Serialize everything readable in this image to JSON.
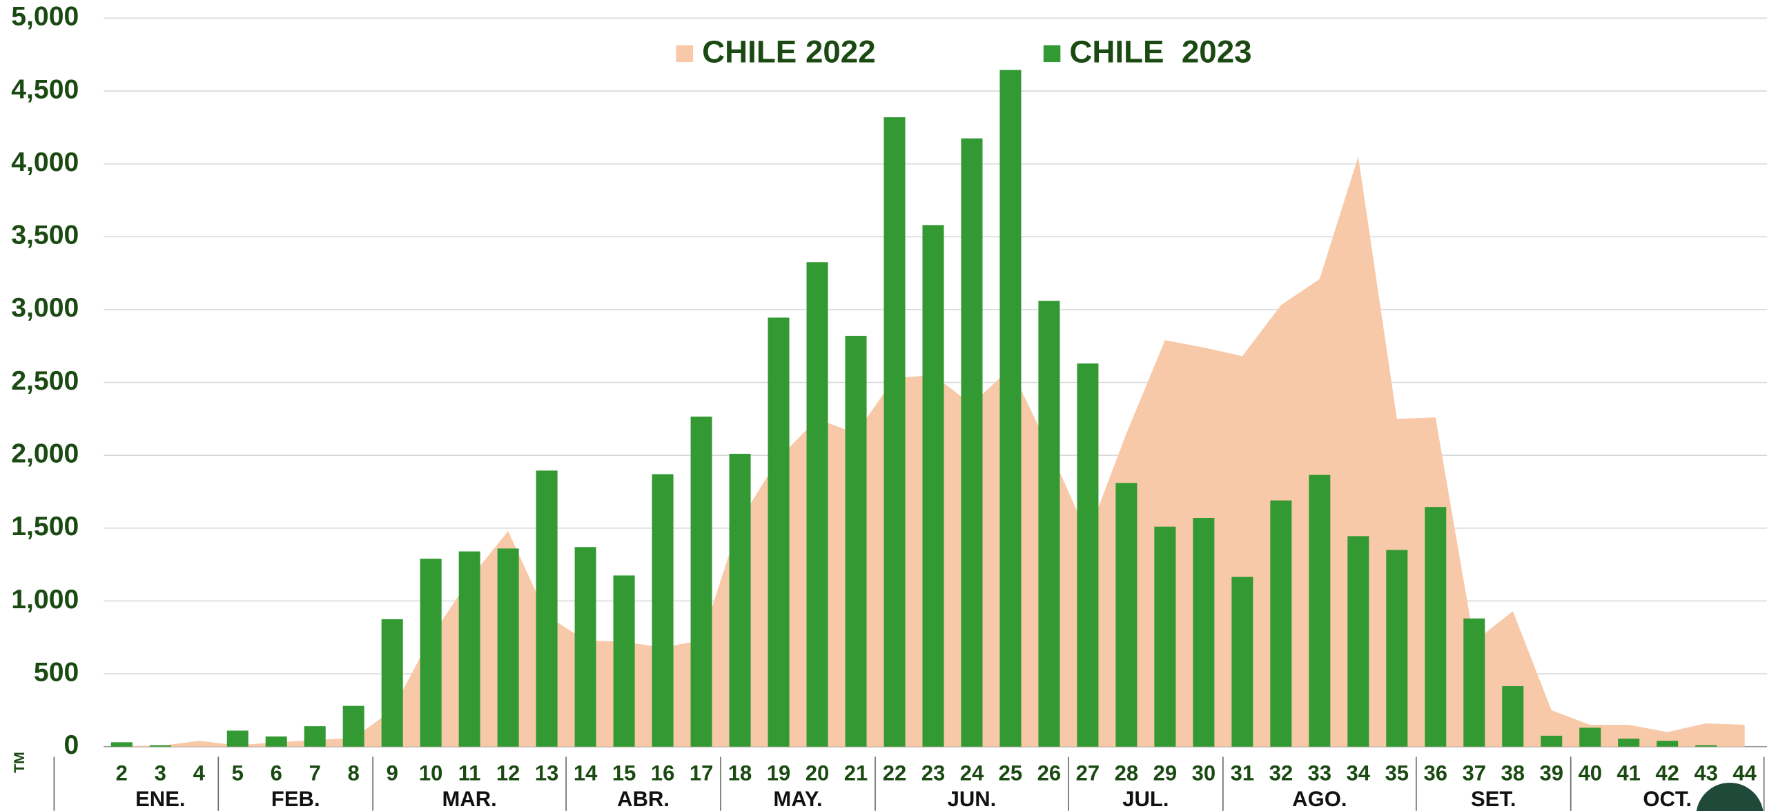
{
  "chart_data": {
    "type": "bar_area",
    "categories": [
      "2",
      "3",
      "4",
      "5",
      "6",
      "7",
      "8",
      "9",
      "10",
      "11",
      "12",
      "13",
      "14",
      "15",
      "16",
      "17",
      "18",
      "19",
      "20",
      "21",
      "22",
      "23",
      "24",
      "25",
      "26",
      "27",
      "28",
      "29",
      "30",
      "31",
      "32",
      "33",
      "34",
      "35",
      "36",
      "37",
      "38",
      "39",
      "40",
      "41",
      "42",
      "43",
      "44"
    ],
    "category_groups": [
      {
        "label": "ENE.",
        "size": 3
      },
      {
        "label": "FEB.",
        "size": 4
      },
      {
        "label": "MAR.",
        "size": 5
      },
      {
        "label": "ABR.",
        "size": 4
      },
      {
        "label": "MAY.",
        "size": 4
      },
      {
        "label": "JUN.",
        "size": 5
      },
      {
        "label": "JUL.",
        "size": 4
      },
      {
        "label": "AGO.",
        "size": 5
      },
      {
        "label": "SET.",
        "size": 4
      },
      {
        "label": "OCT.",
        "size": 5
      }
    ],
    "ylabel": "TM",
    "series": [
      {
        "name": "CHILE 2022",
        "color": "#f7c9a8",
        "kind": "area",
        "values": [
          5,
          5,
          40,
          10,
          30,
          45,
          60,
          250,
          750,
          1150,
          1480,
          900,
          730,
          720,
          680,
          730,
          1550,
          1980,
          2250,
          2150,
          2530,
          2550,
          2350,
          2600,
          2050,
          1450,
          2150,
          2790,
          2740,
          2680,
          3030,
          3210,
          4050,
          2250,
          2260,
          720,
          930,
          250,
          150,
          150,
          100,
          160,
          150
        ]
      },
      {
        "name": "CHILE  2023",
        "color": "#339933",
        "kind": "bar",
        "values": [
          30,
          10,
          0,
          110,
          70,
          140,
          280,
          875,
          1290,
          1340,
          1360,
          1895,
          1370,
          1175,
          1870,
          2265,
          2010,
          2945,
          3325,
          2820,
          4320,
          3580,
          4175,
          4645,
          3060,
          2630,
          1810,
          1510,
          1570,
          1165,
          1690,
          1865,
          1445,
          1350,
          1645,
          880,
          415,
          75,
          130,
          55,
          40,
          10,
          0
        ]
      }
    ],
    "ylim": [
      0,
      5000
    ],
    "yticks": [
      0,
      {
        "value": 500,
        "label": "500"
      },
      {
        "value": 1000,
        "label": "1,000"
      },
      {
        "value": 1500,
        "label": "1,500"
      },
      {
        "value": 2000,
        "label": "2,000"
      },
      {
        "value": 2500,
        "label": "2,500"
      },
      {
        "value": 3000,
        "label": "3,000"
      },
      {
        "value": 3500,
        "label": "3,500"
      },
      {
        "value": 4000,
        "label": "4,000"
      },
      {
        "value": 4500,
        "label": "4,500"
      },
      {
        "value": 5000,
        "label": "5,000"
      }
    ],
    "grid": true
  }
}
